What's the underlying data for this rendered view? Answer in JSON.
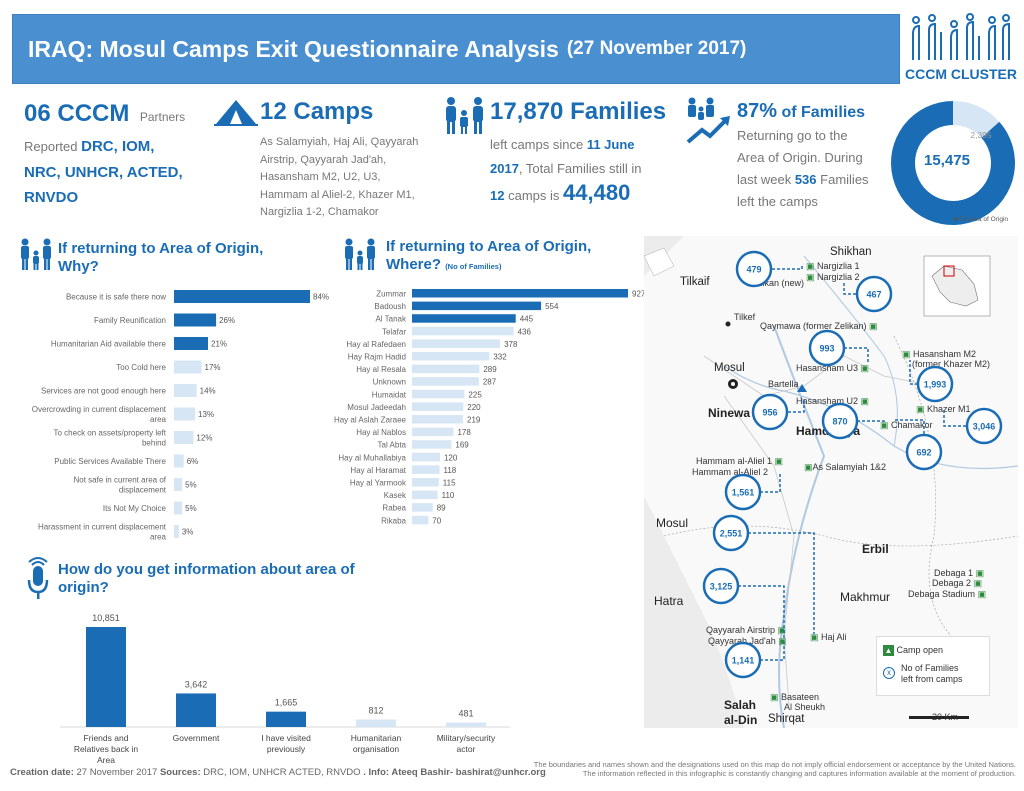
{
  "header": {
    "title": "IRAQ: Mosul Camps Exit Questionnaire Analysis",
    "date": "(27 November 2017)",
    "logo_text": "CCCM CLUSTER"
  },
  "kpi_partners": {
    "count": "06 CCCM",
    "label": "Partners",
    "reported": "Reported",
    "names_line1": "DRC, IOM,",
    "names_line2": "NRC, UNHCR, ACTED,",
    "names_line3": "RNVDO"
  },
  "kpi_camps": {
    "count": "12 Camps",
    "list_line1": "As Salamyiah, Haj Ali, Qayyarah",
    "list_line2": "Airstrip, Qayyarah Jad'ah,",
    "list_line3": "Hasansham M2, U2, U3,",
    "list_line4": "Hammam al Aliel-2, Khazer M1,",
    "list_line5": "Nargizlia 1-2, Chamakor"
  },
  "kpi_families": {
    "count": "17,870 Families",
    "line1_a": "left camps since",
    "line1_b": "11 June",
    "line2_a": "2017",
    "line2_b": ", Total Families still in",
    "line3_a": "12",
    "line3_b": "camps is",
    "total": "44,480"
  },
  "kpi_return": {
    "pct": "87%",
    "of_families": "of Families",
    "line1": "Returning go to the",
    "line2": "Area of Origin. During",
    "line3_a": "last week",
    "line3_b": "536",
    "line3_c": "Families",
    "line4": "left the camps",
    "donut_main": "15,475",
    "donut_rest": "2,395",
    "donut_legend": "To Area of Origin"
  },
  "section_why": {
    "title_line1": "If returning to Area of Origin,",
    "title_line2": "Why?"
  },
  "section_where": {
    "title_line1": "If returning to Area of Origin,",
    "title_line2": "Where?",
    "title_note": "(No of Families)"
  },
  "section_info": {
    "title_line1": "How do you get information about area of",
    "title_line2": "origin?"
  },
  "chart_data": [
    {
      "type": "bar",
      "orientation": "horizontal",
      "title": "If returning to Area of Origin, Why?",
      "categories": [
        "Because it is safe there now",
        "Family Reunification",
        "Humanitarian Aid available there",
        "Too Cold here",
        "Services are not good enough here",
        "Overcrowding in current displacement area",
        "To check on assets/property left behind",
        "Public Services Available There",
        "Not safe in current area of displacement",
        "Its Not My Choice",
        "Harassment in current displacement area"
      ],
      "values": [
        84,
        26,
        21,
        17,
        14,
        13,
        12,
        6,
        5,
        5,
        3
      ],
      "value_labels": [
        "84%",
        "26%",
        "21%",
        "17%",
        "14%",
        "13%",
        "12%",
        "6%",
        "5%",
        "5%",
        "3%"
      ],
      "highlight_count": 3
    },
    {
      "type": "bar",
      "orientation": "horizontal",
      "title": "If returning to Area of Origin, Where? (No of Families)",
      "categories": [
        "Zummar",
        "Badoush",
        "Al Tanak",
        "Telafar",
        "Hay al Rafedaen",
        "Hay Rajm Hadid",
        "Hay al Resala",
        "Unknown",
        "Humaidat",
        "Mosul Jadeedah",
        "Hay al Aslah Zaraee",
        "Hay al Nablos",
        "Tal Abta",
        "Hay al Muhallabiya",
        "Hay al Haramat",
        "Hay al Yarmook",
        "Kasek",
        "Rabea",
        "Rikaba"
      ],
      "values": [
        927,
        554,
        445,
        436,
        378,
        332,
        289,
        287,
        225,
        220,
        219,
        178,
        169,
        120,
        118,
        115,
        110,
        89,
        70
      ],
      "highlight_count": 3
    },
    {
      "type": "bar",
      "orientation": "vertical",
      "title": "How do you get information about area of origin?",
      "categories": [
        "Friends and Relatives back in Area",
        "Government",
        "I have visited previously",
        "Humanitarian organisation",
        "Military/security actor"
      ],
      "values": [
        10851,
        3642,
        1665,
        812,
        481
      ],
      "value_labels": [
        "10,851",
        "3,642",
        "1,665",
        "812",
        "481"
      ],
      "highlight_count": 3
    },
    {
      "type": "pie",
      "title": "",
      "categories": [
        "To Area of Origin",
        "Other"
      ],
      "values": [
        15475,
        2395
      ]
    }
  ],
  "map": {
    "regions": {
      "shikhan": "Shikhan",
      "tilkaif": "Tilkaif",
      "tilkef": "Tilkef",
      "mosul_city": "Mosul",
      "ninewa": "Ninewa",
      "hamdaniya": "Hamdaniya",
      "mosul": "Mosul",
      "hatra": "Hatra",
      "erbil": "Erbil",
      "makhmur": "Makhmur",
      "salah": "Salah",
      "aldin": "al-Din",
      "shirqat": "Shirqat"
    },
    "camps": {
      "nargizlia1": "Nargizlia 1",
      "nargizlia2": "Nargizlia 2",
      "zelikan": "Zelikan (new)",
      "qaymawa": "Qaymawa (former Zelikan)",
      "hasanshamu3": "Hasansham U3",
      "hasanshamm2": "Hasansham M2",
      "formerkhazer": "(former Khazer M2)",
      "bartella": "Bartella",
      "hasanshamu2": "Hasansham U2",
      "khazerm1": "Khazer M1",
      "chamakor": "Chamakor",
      "hammam1": "Hammam al-Aliel 1",
      "hammam2": "Hammam al-Aliel 2",
      "salamyiah": "As Salamyiah 1&2",
      "debaga1": "Debaga 1",
      "debaga2": "Debaga 2",
      "debagastadium": "Debaga Stadium",
      "qayyarahairstrip": "Qayyarah Airstrip",
      "qayyarahjadah": "Qayyarah Jad'ah",
      "hajali": "Haj Ali",
      "basateen": "Basateen",
      "alsheukh": "Al Sheukh"
    },
    "bubbles": [
      "479",
      "467",
      "993",
      "1,993",
      "956",
      "870",
      "3,046",
      "692",
      "1,561",
      "2,551",
      "3,125",
      "1,141"
    ],
    "legend": {
      "camp_open": "Camp open",
      "families_left_1": "No of Families",
      "families_left_2": "left from camps"
    },
    "scale": "20 Km",
    "colors": {
      "camp_green": "#2e8b3d",
      "bubble_blue": "#1a6db5"
    }
  },
  "footer": {
    "creation_label": "Creation date:",
    "creation_date": "27 November 2017",
    "sources_label": "Sources:",
    "sources": "DRC, IOM, UNHCR ACTED, RNVDO",
    "info_label": ". Info: Ateeq Bashir- bashirat@unhcr.org",
    "disclaimer1": "The boundaries and names shown and the designations used on this map do not imply official endorsement or acceptance by the United Nations.",
    "disclaimer2": "The information reflected in this infographic is constantly changing and captures information available at the moment of production."
  },
  "colors": {
    "accent": "#1a6db5",
    "banner": "#4a90d0",
    "light_bar": "#d6e6f5"
  }
}
